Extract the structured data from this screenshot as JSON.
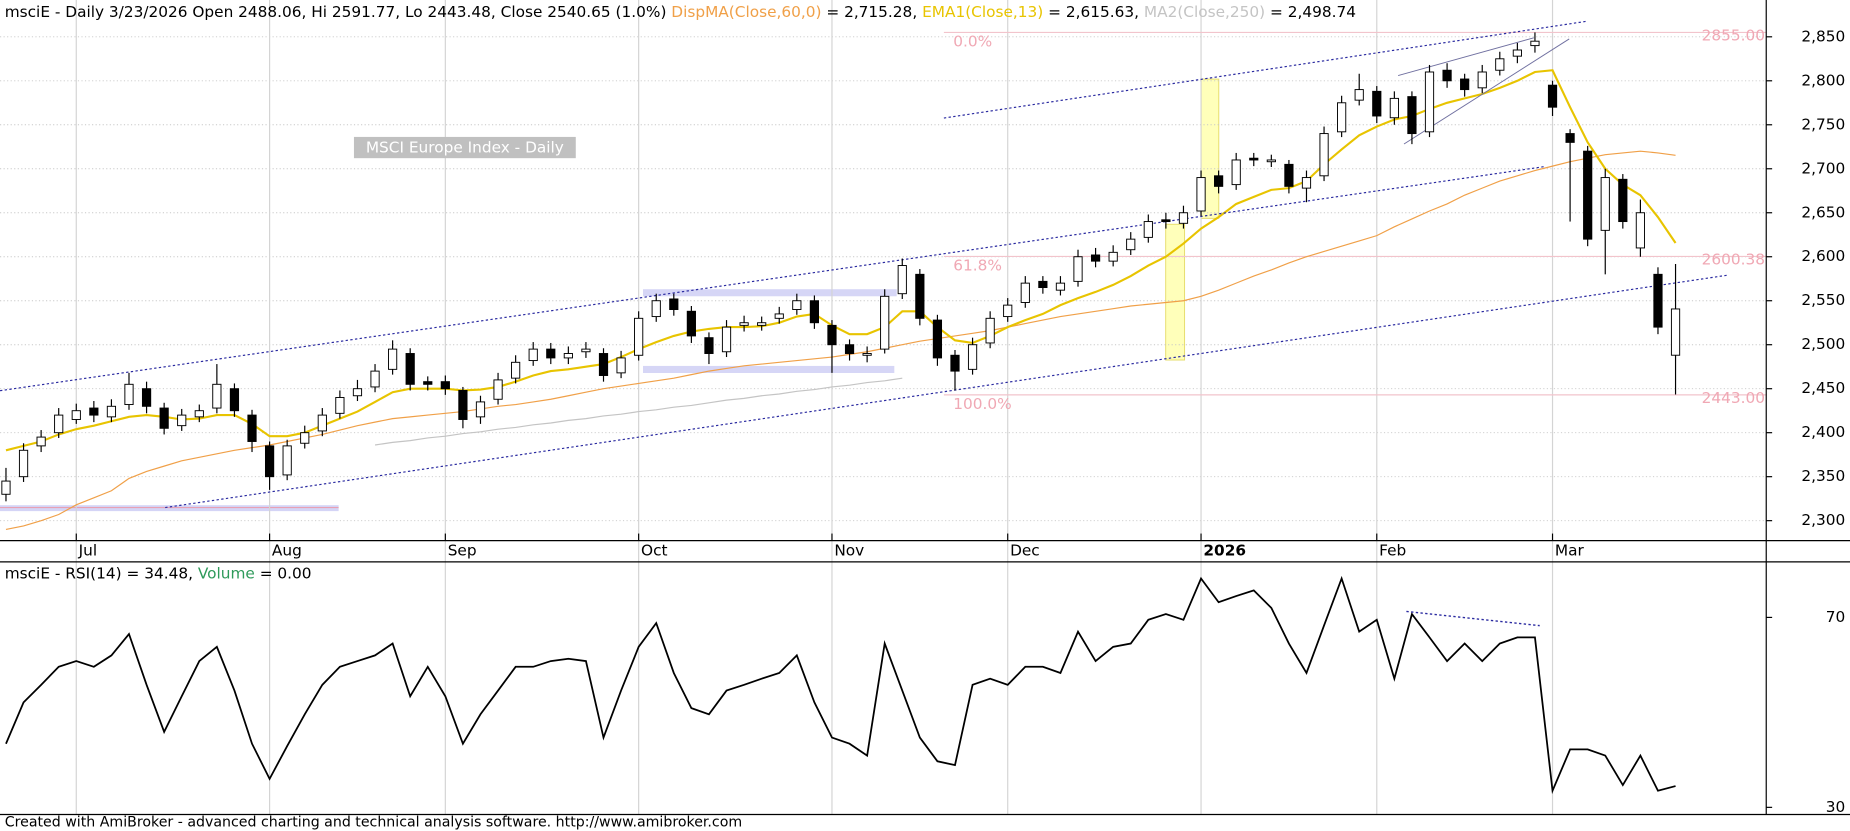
{
  "chart_data": [
    {
      "type": "candlestick",
      "title": "msciE - Daily 3/23/2026 Open 2488.06, Hi 2591.77, Lo 2443.48, Close 2540.65 (1.0%)",
      "label": "MSCI Europe Index - Daily",
      "up_color": "#ffffff",
      "down_color": "#000000",
      "open": [
        2330,
        2350,
        2385,
        2400,
        2415,
        2428,
        2418,
        2432,
        2450,
        2428,
        2408,
        2418,
        2428,
        2450,
        2420,
        2385,
        2352,
        2388,
        2402,
        2422,
        2442,
        2452,
        2472,
        2490,
        2458,
        2458,
        2448,
        2418,
        2438,
        2462,
        2482,
        2495,
        2485,
        2492,
        2490,
        2468,
        2488,
        2532,
        2552,
        2538,
        2508,
        2492,
        2522,
        2522,
        2530,
        2540,
        2550,
        2522,
        2500,
        2488,
        2495,
        2558,
        2580,
        2528,
        2488,
        2472,
        2502,
        2532,
        2548,
        2572,
        2562,
        2572,
        2602,
        2595,
        2608,
        2622,
        2642,
        2638,
        2652,
        2692,
        2682,
        2712,
        2708,
        2705,
        2678,
        2692,
        2742,
        2778,
        2788,
        2758,
        2782,
        2742,
        2812,
        2802,
        2792,
        2812,
        2828,
        2840,
        2795,
        2740,
        2720,
        2630,
        2688,
        2610,
        2580,
        2488.06
      ],
      "high": [
        2360,
        2388,
        2403,
        2428,
        2433,
        2436,
        2438,
        2468,
        2458,
        2434,
        2427,
        2432,
        2478,
        2456,
        2426,
        2390,
        2392,
        2408,
        2428,
        2448,
        2460,
        2478,
        2505,
        2496,
        2464,
        2465,
        2452,
        2442,
        2468,
        2488,
        2503,
        2502,
        2498,
        2503,
        2496,
        2493,
        2538,
        2558,
        2558,
        2544,
        2514,
        2528,
        2533,
        2532,
        2543,
        2558,
        2556,
        2528,
        2506,
        2498,
        2563,
        2598,
        2586,
        2534,
        2494,
        2508,
        2538,
        2553,
        2578,
        2578,
        2578,
        2608,
        2610,
        2613,
        2628,
        2648,
        2650,
        2658,
        2698,
        2698,
        2718,
        2718,
        2716,
        2710,
        2698,
        2748,
        2783,
        2808,
        2794,
        2788,
        2788,
        2818,
        2820,
        2808,
        2818,
        2833,
        2843,
        2855,
        2800,
        2745,
        2726,
        2700,
        2694,
        2665,
        2588,
        2591.77
      ],
      "low": [
        2322,
        2344,
        2378,
        2394,
        2410,
        2412,
        2412,
        2426,
        2422,
        2398,
        2402,
        2412,
        2422,
        2418,
        2378,
        2335,
        2346,
        2382,
        2396,
        2416,
        2436,
        2446,
        2466,
        2448,
        2448,
        2443,
        2405,
        2410,
        2432,
        2456,
        2476,
        2478,
        2478,
        2485,
        2458,
        2462,
        2482,
        2526,
        2533,
        2502,
        2478,
        2486,
        2515,
        2516,
        2524,
        2534,
        2518,
        2468,
        2482,
        2480,
        2490,
        2552,
        2522,
        2476,
        2448,
        2466,
        2496,
        2526,
        2542,
        2558,
        2556,
        2566,
        2588,
        2589,
        2602,
        2616,
        2632,
        2632,
        2646,
        2672,
        2676,
        2703,
        2702,
        2672,
        2662,
        2686,
        2736,
        2772,
        2752,
        2750,
        2728,
        2736,
        2792,
        2782,
        2786,
        2806,
        2820,
        2832,
        2760,
        2640,
        2612,
        2580,
        2632,
        2600,
        2512,
        2443.48
      ],
      "close": [
        2345,
        2380,
        2395,
        2420,
        2425,
        2420,
        2430,
        2455,
        2430,
        2405,
        2420,
        2425,
        2455,
        2425,
        2390,
        2350,
        2385,
        2400,
        2420,
        2440,
        2450,
        2470,
        2495,
        2455,
        2455,
        2450,
        2415,
        2435,
        2460,
        2480,
        2495,
        2485,
        2490,
        2495,
        2465,
        2485,
        2530,
        2550,
        2540,
        2510,
        2490,
        2520,
        2525,
        2525,
        2535,
        2550,
        2525,
        2500,
        2490,
        2490,
        2555,
        2590,
        2530,
        2485,
        2470,
        2500,
        2530,
        2545,
        2570,
        2565,
        2570,
        2600,
        2595,
        2605,
        2620,
        2640,
        2640,
        2650,
        2690,
        2680,
        2710,
        2710,
        2710,
        2680,
        2690,
        2740,
        2775,
        2790,
        2760,
        2780,
        2740,
        2810,
        2800,
        2790,
        2810,
        2825,
        2835,
        2845,
        2770,
        2730,
        2620,
        2690,
        2640,
        2650,
        2520,
        2540.65
      ],
      "series": [
        {
          "name": "DispMA(Close,60,0)",
          "legend_label": "= 2,715.28",
          "color": "#f0a048",
          "values": [
            2290,
            2294,
            2300,
            2307,
            2318,
            2326,
            2334,
            2348,
            2356,
            2362,
            2368,
            2372,
            2376,
            2380,
            2383,
            2386,
            2390,
            2394,
            2398,
            2403,
            2408,
            2412,
            2416,
            2418,
            2420,
            2422,
            2424,
            2427,
            2430,
            2432,
            2435,
            2438,
            2442,
            2446,
            2450,
            2453,
            2456,
            2459,
            2462,
            2466,
            2470,
            2473,
            2476,
            2478,
            2480,
            2482,
            2484,
            2486,
            2489,
            2492,
            2496,
            2500,
            2504,
            2507,
            2510,
            2513,
            2516,
            2520,
            2524,
            2528,
            2532,
            2535,
            2538,
            2541,
            2544,
            2546,
            2548,
            2550,
            2555,
            2562,
            2570,
            2578,
            2585,
            2593,
            2600,
            2606,
            2612,
            2618,
            2624,
            2634,
            2643,
            2652,
            2660,
            2670,
            2678,
            2686,
            2692,
            2698,
            2703,
            2708,
            2712,
            2716,
            2718,
            2720,
            2718,
            2715.28
          ]
        },
        {
          "name": "EMA1(Close,13)",
          "legend_label": "= 2,615.63",
          "color": "#e8c400",
          "values": [
            2380,
            2385,
            2390,
            2398,
            2404,
            2408,
            2413,
            2418,
            2420,
            2418,
            2415,
            2416,
            2420,
            2420,
            2410,
            2396,
            2396,
            2400,
            2408,
            2416,
            2424,
            2435,
            2446,
            2450,
            2450,
            2450,
            2448,
            2449,
            2452,
            2458,
            2465,
            2470,
            2472,
            2475,
            2478,
            2486,
            2495,
            2503,
            2510,
            2515,
            2518,
            2520,
            2520,
            2521,
            2525,
            2532,
            2535,
            2522,
            2512,
            2512,
            2520,
            2538,
            2538,
            2520,
            2505,
            2502,
            2510,
            2520,
            2528,
            2535,
            2545,
            2553,
            2560,
            2568,
            2578,
            2590,
            2600,
            2615,
            2632,
            2645,
            2660,
            2668,
            2676,
            2678,
            2686,
            2705,
            2722,
            2738,
            2748,
            2756,
            2760,
            2768,
            2775,
            2780,
            2785,
            2792,
            2800,
            2810,
            2812,
            2770,
            2730,
            2700,
            2682,
            2670,
            2645,
            2615.63
          ]
        },
        {
          "name": "MA2(Close,250)",
          "legend_label": "= 2,498.74",
          "color": "#c4c4c4",
          "values": [
            null,
            null,
            null,
            null,
            null,
            null,
            null,
            null,
            null,
            null,
            null,
            null,
            null,
            null,
            null,
            null,
            null,
            null,
            null,
            null,
            null,
            2386,
            2389,
            2391,
            2394,
            2396,
            2399,
            2401,
            2404,
            2406,
            2409,
            2411,
            2414,
            2416,
            2419,
            2421,
            2424,
            2426,
            2429,
            2431,
            2434,
            2437,
            2439,
            2442,
            2444,
            2447,
            2449,
            2452,
            2454,
            2457,
            2459,
            2462,
            null,
            null,
            null,
            null,
            null,
            null,
            null,
            null,
            null,
            null,
            null,
            null,
            null,
            null,
            null,
            null,
            null,
            null,
            null,
            null,
            null,
            null,
            null,
            null,
            null,
            null,
            null,
            null,
            null,
            null,
            null,
            null,
            null,
            null,
            null,
            null,
            null,
            null,
            null,
            null,
            null,
            null,
            null,
            null
          ]
        }
      ],
      "fibonacci": [
        {
          "value": 2855,
          "label": "0.0%",
          "price_label": "2855.00"
        },
        {
          "value": 2600.38,
          "label": "61.8%",
          "price_label": "2600.38"
        },
        {
          "value": 2443,
          "label": "100.0%",
          "price_label": "2443.00"
        }
      ],
      "xlim": [
        -0.34,
        100.16
      ],
      "xticks": [
        {
          "value": 4,
          "label": "Jul"
        },
        {
          "value": 15,
          "label": "Aug"
        },
        {
          "value": 25,
          "label": "Sep"
        },
        {
          "value": 36,
          "label": "Oct"
        },
        {
          "value": 47,
          "label": "Nov"
        },
        {
          "value": 57,
          "label": "Dec"
        },
        {
          "value": 68,
          "label": "2026"
        },
        {
          "value": 78,
          "label": "Feb"
        },
        {
          "value": 88,
          "label": "Mar"
        }
      ],
      "ylim": [
        2280,
        2865
      ],
      "yticks": [
        {
          "value": 2300,
          "label": "2,300"
        },
        {
          "value": 2350,
          "label": "2,350"
        },
        {
          "value": 2400,
          "label": "2,400"
        },
        {
          "value": 2450,
          "label": "2,450"
        },
        {
          "value": 2500,
          "label": "2,500"
        },
        {
          "value": 2550,
          "label": "2,550"
        },
        {
          "value": 2600,
          "label": "2,600"
        },
        {
          "value": 2650,
          "label": "2,650"
        },
        {
          "value": 2700,
          "label": "2,700"
        },
        {
          "value": 2750,
          "label": "2,750"
        },
        {
          "value": 2800,
          "label": "2,800"
        },
        {
          "value": 2850,
          "label": "2,850"
        }
      ],
      "grid": true
    },
    {
      "type": "line",
      "title": "msciE - RSI(14) = 34.48,",
      "volume_name": "Volume",
      "volume_label": "= 0.00",
      "volume_color": "#2e9a5a",
      "series": [
        {
          "color": "#000000",
          "values": [
            43.4,
            52.1,
            55.8,
            59.6,
            60.8,
            59.6,
            62.0,
            66.5,
            55.8,
            45.9,
            53.4,
            60.8,
            63.8,
            54.6,
            43.4,
            36.0,
            42.9,
            49.6,
            55.8,
            59.6,
            60.8,
            62.0,
            64.5,
            53.4,
            59.6,
            53.4,
            43.4,
            49.6,
            54.6,
            59.6,
            59.6,
            60.8,
            61.3,
            60.8,
            44.7,
            54.6,
            63.8,
            68.8,
            58.3,
            50.9,
            49.6,
            54.6,
            55.8,
            57.1,
            58.3,
            62.0,
            52.1,
            44.7,
            43.4,
            40.9,
            64.5,
            54.6,
            44.7,
            39.7,
            38.9,
            55.8,
            57.1,
            55.8,
            59.6,
            59.6,
            58.3,
            67.0,
            60.8,
            63.8,
            64.5,
            69.5,
            70.7,
            69.5,
            78.2,
            73.2,
            74.5,
            75.7,
            72.0,
            64.5,
            58.3,
            68.3,
            78.2,
            67.0,
            69.5,
            57.1,
            70.7,
            65.8,
            60.8,
            64.5,
            60.8,
            64.5,
            65.8,
            65.8,
            33.5,
            42.2,
            42.2,
            40.9,
            34.7,
            40.9,
            33.5,
            34.48
          ]
        }
      ],
      "xlim": [
        -0.34,
        100.16
      ],
      "ylim": [
        28.5,
        81.2
      ],
      "yticks": [
        30,
        70
      ]
    }
  ],
  "footer": "Created with AmiBroker - advanced charting and technical analysis software. http://www.amibroker.com"
}
